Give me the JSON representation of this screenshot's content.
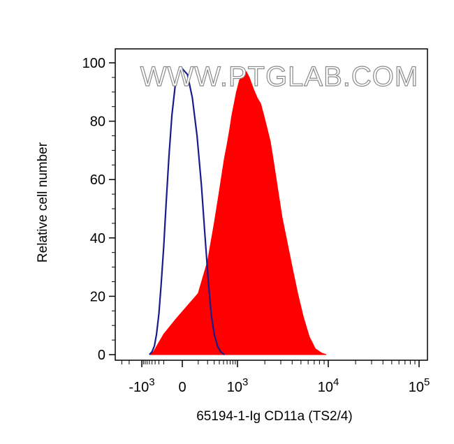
{
  "watermark": "WWW.PTGLAB.COM",
  "chart_data": {
    "type": "area",
    "xlabel": "65194-1-Ig CD11a (TS2/4)",
    "ylabel": "Relative cell number",
    "xscale": "biexponential",
    "ylim": [
      0,
      100
    ],
    "yticks": [
      0,
      20,
      40,
      60,
      80,
      100
    ],
    "xticks": [
      {
        "value": -1000,
        "base": "-10",
        "exp": "3"
      },
      {
        "value": 0,
        "base": "0",
        "exp": ""
      },
      {
        "value": 1000,
        "base": "10",
        "exp": "3"
      },
      {
        "value": 10000,
        "base": "10",
        "exp": "4"
      },
      {
        "value": 100000,
        "base": "10",
        "exp": "5"
      }
    ],
    "grid": false,
    "legend": "none",
    "series": [
      {
        "style": "filled",
        "color": "#ff0000",
        "points": [
          [
            -550,
            0
          ],
          [
            -450,
            1
          ],
          [
            -350,
            3
          ],
          [
            -200,
            7
          ],
          [
            -50,
            12
          ],
          [
            100,
            21
          ],
          [
            200,
            32
          ],
          [
            300,
            45
          ],
          [
            380,
            54
          ],
          [
            450,
            61
          ],
          [
            520,
            67
          ],
          [
            600,
            72
          ],
          [
            680,
            77
          ],
          [
            760,
            82
          ],
          [
            850,
            86
          ],
          [
            950,
            90
          ],
          [
            1050,
            94
          ],
          [
            1150,
            96
          ],
          [
            1250,
            97
          ],
          [
            1350,
            95
          ],
          [
            1500,
            91
          ],
          [
            1650,
            88
          ],
          [
            1800,
            86
          ],
          [
            1950,
            82
          ],
          [
            2100,
            78
          ],
          [
            2300,
            73
          ],
          [
            2500,
            66
          ],
          [
            2800,
            56
          ],
          [
            3100,
            47
          ],
          [
            3500,
            39
          ],
          [
            4000,
            30
          ],
          [
            4600,
            21
          ],
          [
            5300,
            13
          ],
          [
            6200,
            6
          ],
          [
            7200,
            2
          ],
          [
            8500,
            0.5
          ],
          [
            9500,
            0
          ]
        ]
      },
      {
        "style": "line",
        "color": "#1a1a8c",
        "points": [
          [
            -600,
            0
          ],
          [
            -500,
            1
          ],
          [
            -420,
            3
          ],
          [
            -360,
            7
          ],
          [
            -300,
            14
          ],
          [
            -250,
            24
          ],
          [
            -200,
            37
          ],
          [
            -160,
            52
          ],
          [
            -120,
            68
          ],
          [
            -85,
            82
          ],
          [
            -50,
            93
          ],
          [
            -25,
            97
          ],
          [
            0,
            98
          ],
          [
            25,
            96
          ],
          [
            55,
            88
          ],
          [
            90,
            75
          ],
          [
            130,
            58
          ],
          [
            170,
            40
          ],
          [
            210,
            25
          ],
          [
            250,
            14
          ],
          [
            300,
            7
          ],
          [
            360,
            3
          ],
          [
            430,
            1
          ],
          [
            520,
            0
          ]
        ]
      }
    ]
  }
}
